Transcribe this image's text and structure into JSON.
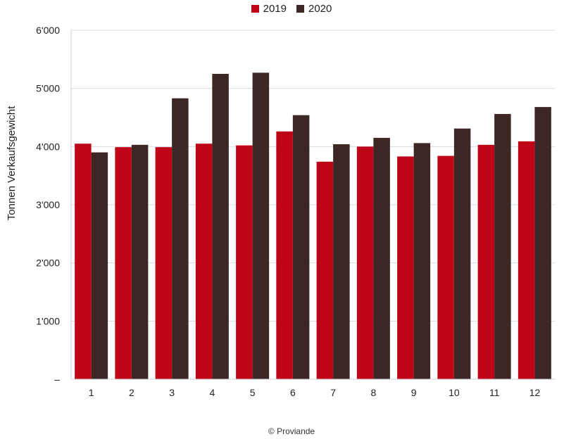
{
  "legend": {
    "items": [
      {
        "label": "2019",
        "color": "#c00418"
      },
      {
        "label": "2020",
        "color": "#3d2725"
      }
    ]
  },
  "credit": "© Proviande",
  "chart_data": {
    "type": "bar",
    "ylabel": "Tonnen Verkaufsgewicht",
    "xlabel": "",
    "ylim": [
      0,
      6000
    ],
    "y_ticks": [
      {
        "value": 0,
        "label": "–"
      },
      {
        "value": 1000,
        "label": "1'000"
      },
      {
        "value": 2000,
        "label": "2'000"
      },
      {
        "value": 3000,
        "label": "3'000"
      },
      {
        "value": 4000,
        "label": "4'000"
      },
      {
        "value": 5000,
        "label": "5'000"
      },
      {
        "value": 6000,
        "label": "6'000"
      }
    ],
    "grid": true,
    "legend_position": "top-center",
    "categories": [
      "1",
      "2",
      "3",
      "4",
      "5",
      "6",
      "7",
      "8",
      "9",
      "10",
      "11",
      "12"
    ],
    "series": [
      {
        "name": "2019",
        "color": "#c00418",
        "values": [
          4050,
          3990,
          3990,
          4050,
          4020,
          4260,
          3740,
          4000,
          3830,
          3840,
          4030,
          4090
        ]
      },
      {
        "name": "2020",
        "color": "#3d2725",
        "values": [
          3900,
          4030,
          4830,
          5250,
          5270,
          4540,
          4040,
          4150,
          4060,
          4310,
          4560,
          4680
        ]
      }
    ]
  }
}
